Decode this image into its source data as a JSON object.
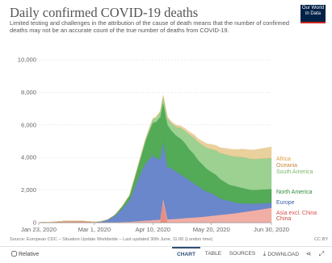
{
  "header": {
    "title": "Daily confirmed COVID-19 deaths",
    "subtitle": "Limited testing and challenges in the attribution of the cause of death means that the number of confirmed deaths may not be an accurate count of the true number of deaths from COVID-19.",
    "logo_text": "Our World in Data",
    "logo_bg": "#002147",
    "logo_accent": "#ce261e"
  },
  "footer": {
    "source": "Source: European CDC – Situation Update Worldwide – Last updated 30th June, 11:00 (London time)",
    "license": "CC BY",
    "relative_label": "Relative",
    "tabs": [
      {
        "label": "CHART",
        "icon": ""
      },
      {
        "label": "TABLE",
        "icon": ""
      },
      {
        "label": "SOURCES",
        "icon": ""
      },
      {
        "label": "DOWNLOAD",
        "icon": "download-icon"
      },
      {
        "label": "",
        "icon": "share-icon"
      },
      {
        "label": "",
        "icon": "expand-icon"
      }
    ]
  },
  "chart_data": {
    "type": "area",
    "stacked": true,
    "x_start": "2020-01-23",
    "x_end": "2020-06-30",
    "x_ticks": [
      {
        "date": "2020-01-23",
        "label": "Jan 23, 2020"
      },
      {
        "date": "2020-03-01",
        "label": "Mar 1, 2020"
      },
      {
        "date": "2020-04-10",
        "label": "Apr 10, 2020"
      },
      {
        "date": "2020-05-20",
        "label": "May 20, 2020"
      },
      {
        "date": "2020-06-30",
        "label": "Jun 30, 2020"
      }
    ],
    "y_ticks": [
      0,
      2000,
      4000,
      6000,
      8000,
      10000
    ],
    "y_tick_labels": [
      "0",
      "2,000",
      "4,000",
      "6,000",
      "8,000",
      "10,000"
    ],
    "ylim": [
      0,
      10500
    ],
    "grid": "horizontal-dashed",
    "dates": [
      "2020-01-23",
      "2020-02-01",
      "2020-02-10",
      "2020-02-20",
      "2020-03-01",
      "2020-03-05",
      "2020-03-10",
      "2020-03-15",
      "2020-03-20",
      "2020-03-25",
      "2020-03-30",
      "2020-04-02",
      "2020-04-05",
      "2020-04-08",
      "2020-04-10",
      "2020-04-12",
      "2020-04-15",
      "2020-04-17",
      "2020-04-20",
      "2020-04-23",
      "2020-04-26",
      "2020-04-29",
      "2020-05-02",
      "2020-05-05",
      "2020-05-08",
      "2020-05-11",
      "2020-05-14",
      "2020-05-17",
      "2020-05-20",
      "2020-05-23",
      "2020-05-26",
      "2020-05-29",
      "2020-06-01",
      "2020-06-04",
      "2020-06-07",
      "2020-06-10",
      "2020-06-13",
      "2020-06-16",
      "2020-06-19",
      "2020-06-22",
      "2020-06-24",
      "2020-06-26",
      "2020-06-28",
      "2020-06-30"
    ],
    "series": [
      {
        "name": "China",
        "color": "#e6877a",
        "values": [
          10,
          40,
          100,
          110,
          40,
          25,
          20,
          10,
          8,
          5,
          5,
          3,
          2,
          2,
          2,
          2,
          2,
          1320,
          2,
          2,
          2,
          2,
          2,
          2,
          2,
          2,
          2,
          2,
          2,
          2,
          2,
          2,
          2,
          2,
          2,
          2,
          2,
          2,
          2,
          2,
          2,
          2,
          2,
          2
        ]
      },
      {
        "name": "Asia excl. China",
        "color": "#f0aaa0",
        "values": [
          0,
          0,
          0,
          0,
          3,
          5,
          10,
          20,
          40,
          60,
          90,
          110,
          130,
          140,
          160,
          170,
          180,
          190,
          200,
          220,
          230,
          260,
          280,
          300,
          320,
          340,
          360,
          390,
          420,
          450,
          480,
          510,
          540,
          570,
          600,
          640,
          680,
          720,
          760,
          800,
          830,
          860,
          890,
          920
        ]
      },
      {
        "name": "Europe",
        "color": "#6281c8",
        "values": [
          0,
          0,
          0,
          0,
          5,
          40,
          150,
          400,
          800,
          1300,
          2400,
          3000,
          3500,
          3800,
          4000,
          3800,
          3700,
          3500,
          3200,
          3100,
          2900,
          2700,
          2500,
          2300,
          2100,
          1900,
          1700,
          1500,
          1400,
          1200,
          1000,
          900,
          800,
          700,
          600,
          550,
          500,
          450,
          400,
          380,
          360,
          340,
          320,
          300
        ]
      },
      {
        "name": "North America",
        "color": "#4aa54e",
        "values": [
          0,
          0,
          0,
          0,
          0,
          3,
          10,
          50,
          150,
          300,
          700,
          1000,
          1400,
          1800,
          2000,
          2200,
          2600,
          2400,
          2600,
          2300,
          2200,
          2200,
          2100,
          1900,
          1800,
          1600,
          1500,
          1400,
          1300,
          1300,
          1200,
          1100,
          1000,
          1000,
          1000,
          950,
          900,
          850,
          850,
          850,
          850,
          850,
          850,
          850
        ]
      },
      {
        "name": "South America",
        "color": "#97cf8c",
        "values": [
          0,
          0,
          0,
          0,
          0,
          0,
          0,
          2,
          5,
          20,
          50,
          80,
          100,
          150,
          200,
          250,
          300,
          350,
          400,
          450,
          550,
          650,
          750,
          900,
          1000,
          1100,
          1200,
          1300,
          1400,
          1500,
          1600,
          1700,
          1800,
          1800,
          1850,
          1900,
          1900,
          1900,
          1900,
          1900,
          1900,
          1900,
          1900,
          1900
        ]
      },
      {
        "name": "Oceania",
        "color": "#bfa35a",
        "values": [
          0,
          0,
          0,
          0,
          0,
          0,
          0,
          0,
          1,
          1,
          2,
          3,
          3,
          4,
          4,
          4,
          4,
          4,
          4,
          3,
          3,
          3,
          2,
          2,
          2,
          2,
          1,
          1,
          1,
          1,
          1,
          1,
          1,
          1,
          1,
          1,
          1,
          1,
          1,
          1,
          1,
          1,
          1,
          1
        ]
      },
      {
        "name": "Africa",
        "color": "#e8ce98",
        "values": [
          0,
          0,
          0,
          0,
          0,
          0,
          0,
          1,
          2,
          5,
          10,
          20,
          30,
          40,
          50,
          60,
          70,
          80,
          90,
          100,
          110,
          130,
          150,
          170,
          190,
          210,
          230,
          250,
          280,
          300,
          330,
          360,
          390,
          420,
          450,
          480,
          510,
          540,
          570,
          600,
          620,
          640,
          660,
          680
        ]
      }
    ],
    "legend": "right-side labels",
    "legend_labels": [
      {
        "name": "Africa",
        "color": "#e39a3c"
      },
      {
        "name": "Oceania",
        "color": "#c5893b"
      },
      {
        "name": "South America",
        "color": "#7ab86e"
      },
      {
        "name": "North America",
        "color": "#2f8b39"
      },
      {
        "name": "Europe",
        "color": "#3a5ea8"
      },
      {
        "name": "Asia excl. China",
        "color": "#d9534f"
      },
      {
        "name": "China",
        "color": "#c94a3e"
      }
    ]
  }
}
